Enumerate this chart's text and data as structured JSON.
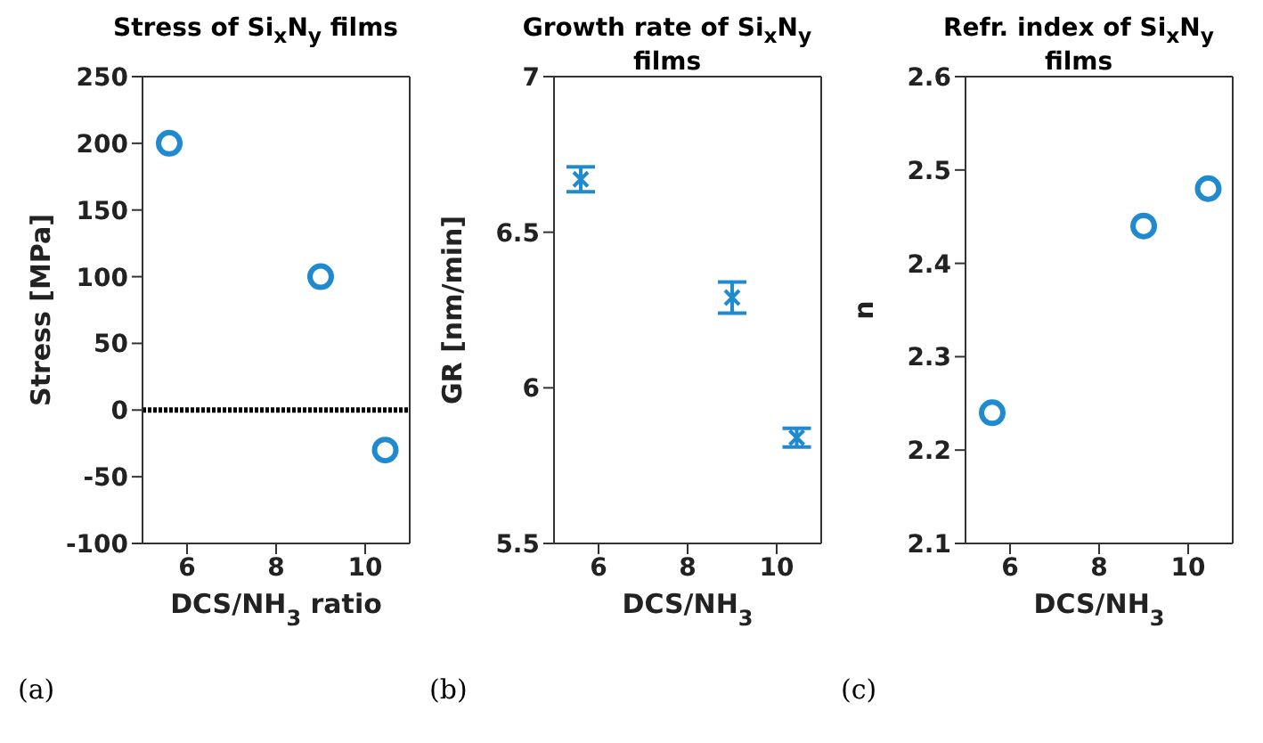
{
  "chart_data": [
    {
      "type": "scatter",
      "title": "Stress of Si$_{x}$N$_{y}$ films",
      "xlabel": "DCS/NH$_{3}$ ratio",
      "ylabel": "Stress [MPa]",
      "x": [
        5.6,
        9,
        10.45
      ],
      "series": [
        {
          "color": "#1f8ad0",
          "values": [
            200,
            100,
            -30
          ]
        }
      ],
      "marker": "circle",
      "xlim": [
        5,
        11
      ],
      "xticks": [
        6,
        8,
        10
      ],
      "ylim": [
        -100,
        250
      ],
      "yticks": [
        -100,
        -50,
        0,
        50,
        100,
        150,
        200,
        250
      ],
      "ref_lines": [
        {
          "axis": "y",
          "value": 0,
          "color": "#000000",
          "line_style": "dotted"
        }
      ],
      "annotations": [
        "(a)"
      ]
    },
    {
      "type": "scatter",
      "title": "Growth rate of Si$_{x}$N$_{y}$ films",
      "xlabel": "DCS/NH$_{3}$",
      "ylabel": "GR [nm/min]",
      "x": [
        5.6,
        9,
        10.45
      ],
      "series": [
        {
          "color": "#1f8ad0",
          "values": [
            6.67,
            6.29,
            5.84
          ],
          "errors": [
            0.04,
            0.05,
            0.03
          ]
        }
      ],
      "marker": "cross",
      "xlim": [
        5,
        11
      ],
      "xticks": [
        6,
        8,
        10
      ],
      "ylim": [
        5.5,
        7
      ],
      "yticks": [
        5.5,
        6,
        6.5,
        7
      ],
      "annotations": [
        "(b)"
      ]
    },
    {
      "type": "scatter",
      "title": "Refr. index of Si$_{x}$N$_{y}$ films",
      "xlabel": "DCS/NH$_{3}$",
      "ylabel": "n",
      "x": [
        5.6,
        9,
        10.45
      ],
      "series": [
        {
          "color": "#1f8ad0",
          "values": [
            2.24,
            2.44,
            2.48
          ]
        }
      ],
      "marker": "circle",
      "xlim": [
        5,
        11
      ],
      "xticks": [
        6,
        8,
        10
      ],
      "ylim": [
        2.1,
        2.6
      ],
      "yticks": [
        2.1,
        2.2,
        2.3,
        2.4,
        2.5,
        2.6
      ],
      "annotations": [
        "(c)"
      ]
    }
  ]
}
